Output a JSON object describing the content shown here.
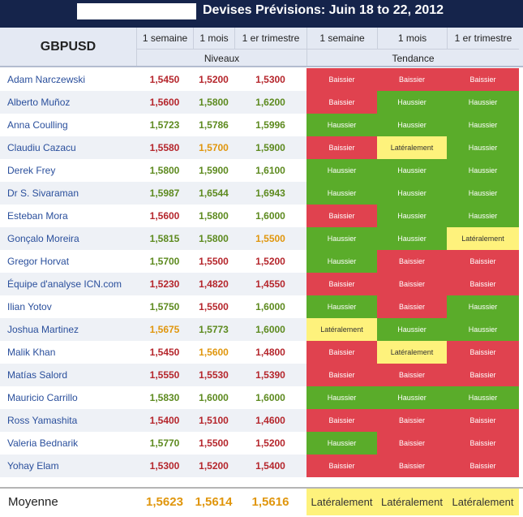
{
  "title": "Devises Prévisions: Juin 18 to 22, 2012",
  "pair": "GBPUSD",
  "column_headers": [
    "1 semaine",
    "1 mois",
    "1 er trimestre",
    "1 semaine",
    "1 mois",
    "1 er trimestre"
  ],
  "groups": {
    "levels": "Niveaux",
    "trend": "Tendance"
  },
  "colors": {
    "bearish_text": "#b5262c",
    "bullish_text": "#5d8a1f",
    "sideways_text": "#e0960d",
    "bearish_fill": "#e0424f",
    "bullish_fill": "#5aac2a",
    "sideways_fill": "#fef27c"
  },
  "rows": [
    {
      "name": "Adam Narczewski",
      "levels": [
        "1,5450",
        "1,5200",
        "1,5300"
      ],
      "trends": [
        "Baissier",
        "Baissier",
        "Baissier"
      ]
    },
    {
      "name": "Alberto Muñoz",
      "levels": [
        "1,5600",
        "1,5800",
        "1,6200"
      ],
      "trends": [
        "Baissier",
        "Haussier",
        "Haussier"
      ]
    },
    {
      "name": "Anna Coulling",
      "levels": [
        "1,5723",
        "1,5786",
        "1,5996"
      ],
      "trends": [
        "Haussier",
        "Haussier",
        "Haussier"
      ]
    },
    {
      "name": "Claudiu Cazacu",
      "levels": [
        "1,5580",
        "1,5700",
        "1,5900"
      ],
      "trends": [
        "Baissier",
        "Latéralement",
        "Haussier"
      ]
    },
    {
      "name": "Derek Frey",
      "levels": [
        "1,5800",
        "1,5900",
        "1,6100"
      ],
      "trends": [
        "Haussier",
        "Haussier",
        "Haussier"
      ]
    },
    {
      "name": "Dr S. Sivaraman",
      "levels": [
        "1,5987",
        "1,6544",
        "1,6943"
      ],
      "trends": [
        "Haussier",
        "Haussier",
        "Haussier"
      ]
    },
    {
      "name": "Esteban Mora",
      "levels": [
        "1,5600",
        "1,5800",
        "1,6000"
      ],
      "trends": [
        "Baissier",
        "Haussier",
        "Haussier"
      ]
    },
    {
      "name": "Gonçalo Moreira",
      "levels": [
        "1,5815",
        "1,5800",
        "1,5500"
      ],
      "trends": [
        "Haussier",
        "Haussier",
        "Latéralement"
      ]
    },
    {
      "name": "Gregor Horvat",
      "levels": [
        "1,5700",
        "1,5500",
        "1,5200"
      ],
      "trends": [
        "Haussier",
        "Baissier",
        "Baissier"
      ]
    },
    {
      "name": "Équipe d'analyse ICN.com",
      "levels": [
        "1,5230",
        "1,4820",
        "1,4550"
      ],
      "trends": [
        "Baissier",
        "Baissier",
        "Baissier"
      ]
    },
    {
      "name": "Ilian Yotov",
      "levels": [
        "1,5750",
        "1,5500",
        "1,6000"
      ],
      "trends": [
        "Haussier",
        "Baissier",
        "Haussier"
      ]
    },
    {
      "name": "Joshua Martinez",
      "levels": [
        "1,5675",
        "1,5773",
        "1,6000"
      ],
      "trends": [
        "Latéralement",
        "Haussier",
        "Haussier"
      ]
    },
    {
      "name": "Malik Khan",
      "levels": [
        "1,5450",
        "1,5600",
        "1,4800"
      ],
      "trends": [
        "Baissier",
        "Latéralement",
        "Baissier"
      ]
    },
    {
      "name": "Matías Salord",
      "levels": [
        "1,5550",
        "1,5530",
        "1,5390"
      ],
      "trends": [
        "Baissier",
        "Baissier",
        "Baissier"
      ]
    },
    {
      "name": "Mauricio Carrillo",
      "levels": [
        "1,5830",
        "1,6000",
        "1,6000"
      ],
      "trends": [
        "Haussier",
        "Haussier",
        "Haussier"
      ]
    },
    {
      "name": "Ross Yamashita",
      "levels": [
        "1,5400",
        "1,5100",
        "1,4600"
      ],
      "trends": [
        "Baissier",
        "Baissier",
        "Baissier"
      ]
    },
    {
      "name": "Valeria Bednarik",
      "levels": [
        "1,5770",
        "1,5500",
        "1,5200"
      ],
      "trends": [
        "Haussier",
        "Baissier",
        "Baissier"
      ]
    },
    {
      "name": "Yohay Elam",
      "levels": [
        "1,5300",
        "1,5200",
        "1,5400"
      ],
      "trends": [
        "Baissier",
        "Baissier",
        "Baissier"
      ]
    }
  ],
  "average": {
    "label": "Moyenne",
    "levels": [
      "1,5623",
      "1,5614",
      "1,5616"
    ],
    "trends": [
      "Latéralement",
      "Latéralement",
      "Latéralement"
    ]
  }
}
